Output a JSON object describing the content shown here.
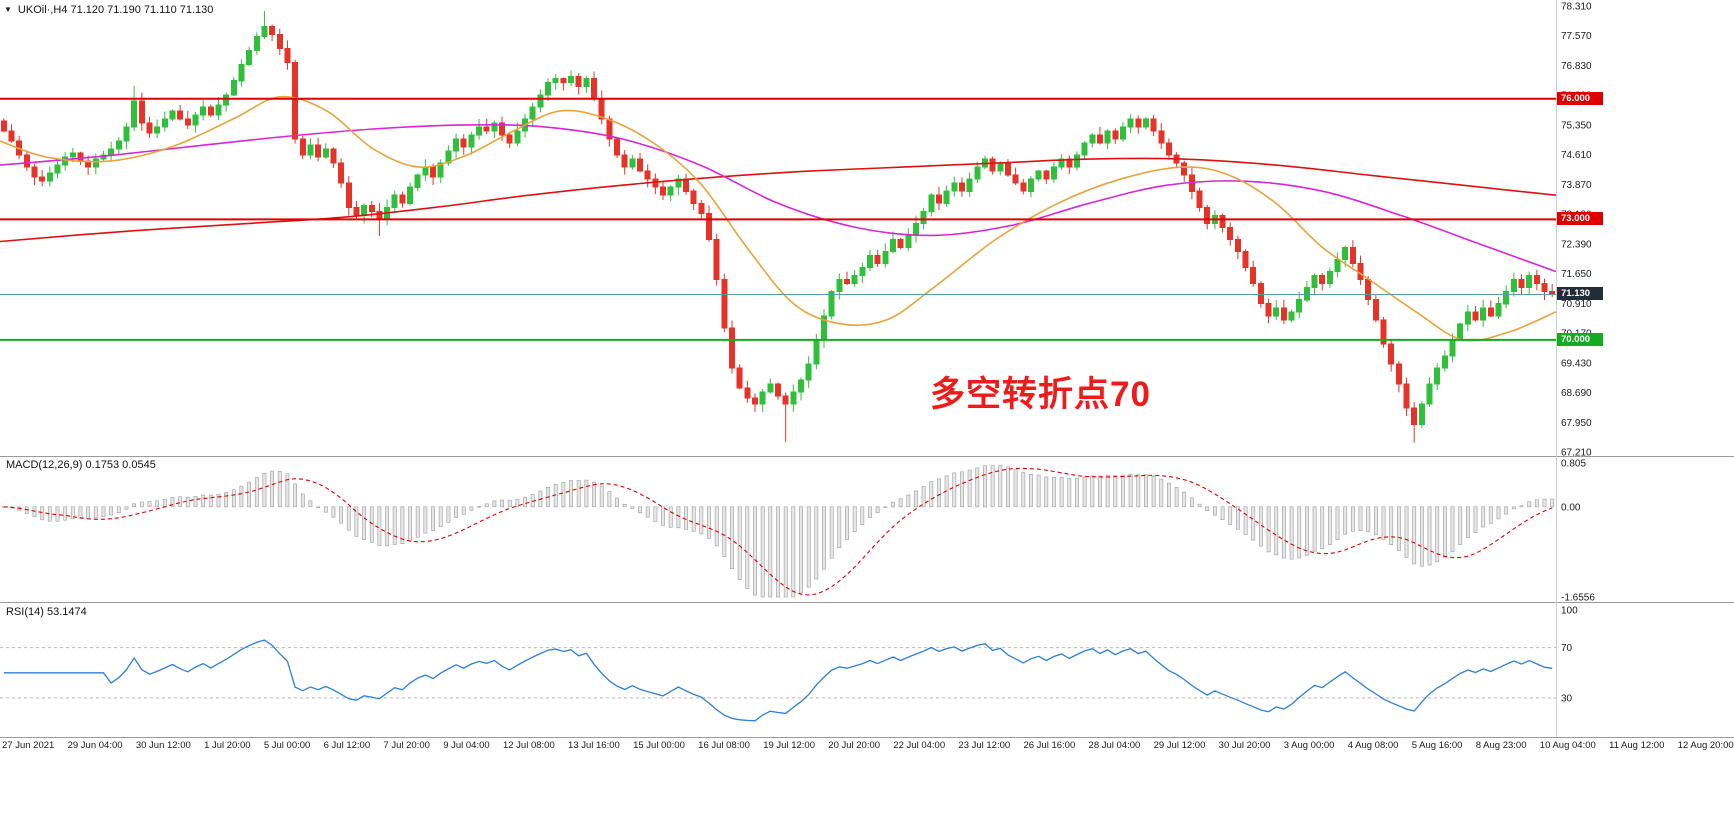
{
  "header": {
    "triangle_icon": "▼",
    "symbol_ohlc_text": "UKOil·,H4 71.120 71.190 71.110 71.130"
  },
  "annotation": {
    "text": "多空转折点70",
    "color": "#ee1b1b"
  },
  "macd_panel": {
    "label_text": "MACD(12,26,9) 0.1753 0.0545"
  },
  "rsi_panel": {
    "label_text": "RSI(14) 53.1474"
  },
  "chart_data": {
    "type": "candlestick",
    "symbol": "UKOil",
    "timeframe": "H4",
    "ohlc_display": {
      "open": "71.120",
      "high": "71.190",
      "low": "71.110",
      "close": "71.130"
    },
    "colors": {
      "up": "#2fbf3a",
      "down": "#e6332a",
      "macd_hist_fill": "#e6e6e6",
      "macd_hist_stroke": "#9c9c9c",
      "macd_signal": "#e00000",
      "rsi_line": "#2f7ed8",
      "grid_dash": "#b8b8b8",
      "separator": "#9b9b9b",
      "axis_text": "#1c1c1c"
    },
    "price_axis": {
      "min": 67.21,
      "max": 78.31,
      "ticks": [
        78.31,
        77.57,
        76.83,
        76.09,
        75.35,
        74.61,
        73.87,
        73.13,
        72.39,
        71.65,
        70.91,
        70.17,
        69.43,
        68.69,
        67.95,
        67.21
      ],
      "boxes": [
        {
          "label": "76.000",
          "price": 76.0,
          "bg": "#dd0000"
        },
        {
          "label": "73.000",
          "price": 73.0,
          "bg": "#dd0000"
        },
        {
          "label": "71.130",
          "price": 71.13,
          "bg": "#222d3a"
        },
        {
          "label": "70.000",
          "price": 70.0,
          "bg": "#12ad1f"
        }
      ]
    },
    "levels": [
      {
        "label": "76.000",
        "price": 76.0,
        "color": "#dd0000"
      },
      {
        "label": "73.000",
        "price": 73.0,
        "color": "#dd0000"
      },
      {
        "label": "70.000",
        "price": 70.0,
        "color": "#12ad1f"
      }
    ],
    "current_price": {
      "value": 71.13,
      "label": "71.130",
      "line_color": "#5b98a8"
    },
    "time_labels": [
      "27 Jun 2021",
      "29 Jun 04:00",
      "30 Jun 12:00",
      "1 Jul 20:00",
      "5 Jul 00:00",
      "6 Jul 12:00",
      "7 Jul 20:00",
      "9 Jul 04:00",
      "12 Jul 08:00",
      "13 Jul 16:00",
      "15 Jul 00:00",
      "16 Jul 08:00",
      "19 Jul 12:00",
      "20 Jul 20:00",
      "22 Jul 04:00",
      "23 Jul 12:00",
      "26 Jul 16:00",
      "28 Jul 04:00",
      "29 Jul 12:00",
      "30 Jul 20:00",
      "3 Aug 00:00",
      "4 Aug 08:00",
      "5 Aug 16:00",
      "8 Aug 23:00",
      "10 Aug 04:00",
      "11 Aug 12:00",
      "12 Aug 20:00"
    ],
    "closes": [
      75.2,
      74.95,
      74.6,
      74.3,
      74.05,
      73.95,
      74.15,
      74.35,
      74.55,
      74.65,
      74.45,
      74.3,
      74.5,
      74.6,
      74.75,
      74.95,
      75.3,
      75.95,
      75.4,
      75.15,
      75.3,
      75.5,
      75.7,
      75.5,
      75.35,
      75.6,
      75.8,
      75.6,
      75.85,
      76.1,
      76.45,
      76.85,
      77.2,
      77.55,
      77.8,
      77.6,
      77.25,
      76.9,
      75.0,
      74.6,
      74.85,
      74.55,
      74.75,
      74.4,
      73.9,
      73.3,
      73.1,
      73.35,
      73.2,
      73.0,
      73.3,
      73.6,
      73.4,
      73.8,
      74.1,
      74.3,
      74.05,
      74.4,
      74.7,
      75.0,
      74.8,
      75.1,
      75.3,
      75.2,
      75.4,
      75.1,
      74.9,
      75.2,
      75.5,
      75.8,
      76.1,
      76.4,
      76.5,
      76.4,
      76.55,
      76.3,
      76.5,
      76.0,
      75.5,
      75.0,
      74.6,
      74.3,
      74.5,
      74.2,
      74.0,
      73.8,
      73.6,
      73.8,
      74.0,
      73.7,
      73.4,
      73.15,
      72.5,
      71.5,
      70.3,
      69.3,
      68.8,
      68.55,
      68.4,
      68.7,
      68.9,
      68.6,
      68.4,
      68.7,
      69.0,
      69.4,
      70.0,
      70.6,
      71.2,
      71.5,
      71.4,
      71.6,
      71.8,
      72.1,
      71.9,
      72.2,
      72.5,
      72.3,
      72.6,
      72.9,
      73.2,
      73.6,
      73.4,
      73.7,
      73.9,
      73.7,
      74.0,
      74.3,
      74.5,
      74.2,
      74.4,
      74.1,
      73.9,
      73.7,
      74.0,
      74.2,
      74.0,
      74.3,
      74.5,
      74.3,
      74.6,
      74.9,
      75.1,
      74.9,
      75.2,
      75.0,
      75.3,
      75.5,
      75.3,
      75.5,
      75.2,
      74.9,
      74.6,
      74.4,
      74.1,
      73.7,
      73.3,
      72.9,
      73.1,
      72.8,
      72.5,
      72.2,
      71.8,
      71.4,
      70.9,
      70.6,
      70.8,
      70.5,
      70.7,
      71.0,
      71.3,
      71.6,
      71.4,
      71.7,
      72.0,
      72.3,
      71.9,
      71.5,
      71.0,
      70.5,
      69.9,
      69.4,
      68.9,
      68.3,
      67.9,
      68.4,
      68.9,
      69.3,
      69.6,
      70.0,
      70.4,
      70.7,
      70.5,
      70.8,
      70.6,
      70.9,
      71.2,
      71.5,
      71.3,
      71.6,
      71.4,
      71.2,
      71.13
    ],
    "wick_extras": {
      "17": [
        0.3,
        0
      ],
      "34": [
        0.25,
        0
      ],
      "49": [
        0,
        0.25
      ],
      "102": [
        0,
        0.85
      ],
      "184": [
        0,
        0.3
      ]
    },
    "moving_averages": [
      {
        "name": "ma-slow",
        "color": "#dd1111",
        "points": [
          [
            0,
            72.45
          ],
          [
            0.08,
            72.7
          ],
          [
            0.16,
            72.9
          ],
          [
            0.22,
            73.05
          ],
          [
            0.28,
            73.3
          ],
          [
            0.34,
            73.6
          ],
          [
            0.4,
            73.85
          ],
          [
            0.46,
            74.05
          ],
          [
            0.52,
            74.2
          ],
          [
            0.58,
            74.3
          ],
          [
            0.64,
            74.4
          ],
          [
            0.7,
            74.5
          ],
          [
            0.76,
            74.5
          ],
          [
            0.82,
            74.35
          ],
          [
            0.88,
            74.1
          ],
          [
            0.94,
            73.85
          ],
          [
            1,
            73.6
          ]
        ]
      },
      {
        "name": "ma-mid",
        "color": "#d626d6",
        "points": [
          [
            0,
            74.35
          ],
          [
            0.06,
            74.55
          ],
          [
            0.12,
            74.8
          ],
          [
            0.18,
            75.05
          ],
          [
            0.24,
            75.25
          ],
          [
            0.3,
            75.35
          ],
          [
            0.35,
            75.3
          ],
          [
            0.4,
            75.0
          ],
          [
            0.45,
            74.35
          ],
          [
            0.5,
            73.4
          ],
          [
            0.55,
            72.8
          ],
          [
            0.6,
            72.6
          ],
          [
            0.65,
            72.85
          ],
          [
            0.7,
            73.4
          ],
          [
            0.75,
            73.85
          ],
          [
            0.8,
            73.95
          ],
          [
            0.85,
            73.7
          ],
          [
            0.9,
            73.1
          ],
          [
            0.95,
            72.4
          ],
          [
            1,
            71.7
          ]
        ]
      },
      {
        "name": "ma-fast",
        "color": "#e8a33c",
        "points": [
          [
            0,
            74.95
          ],
          [
            0.03,
            74.55
          ],
          [
            0.07,
            74.45
          ],
          [
            0.11,
            74.8
          ],
          [
            0.15,
            75.5
          ],
          [
            0.18,
            76.05
          ],
          [
            0.21,
            75.7
          ],
          [
            0.24,
            74.75
          ],
          [
            0.27,
            74.3
          ],
          [
            0.3,
            74.6
          ],
          [
            0.33,
            75.2
          ],
          [
            0.36,
            75.7
          ],
          [
            0.39,
            75.5
          ],
          [
            0.42,
            74.9
          ],
          [
            0.45,
            73.9
          ],
          [
            0.48,
            72.3
          ],
          [
            0.51,
            70.9
          ],
          [
            0.54,
            70.4
          ],
          [
            0.57,
            70.5
          ],
          [
            0.6,
            71.3
          ],
          [
            0.64,
            72.5
          ],
          [
            0.68,
            73.4
          ],
          [
            0.72,
            74.0
          ],
          [
            0.76,
            74.3
          ],
          [
            0.79,
            74.1
          ],
          [
            0.82,
            73.4
          ],
          [
            0.85,
            72.3
          ],
          [
            0.88,
            71.5
          ],
          [
            0.91,
            70.7
          ],
          [
            0.94,
            70.0
          ],
          [
            0.97,
            70.2
          ],
          [
            1,
            70.7
          ]
        ]
      }
    ],
    "macd": {
      "fast": 12,
      "slow": 26,
      "signal": 9,
      "value_main": 0.1753,
      "value_signal": 0.0545,
      "axis_ticks": [
        [
          "0.805",
          0.805
        ],
        [
          "0.00",
          0
        ],
        [
          "-1.6556",
          -1.6556
        ]
      ]
    },
    "rsi": {
      "period": 14,
      "value": 53.1474,
      "levels": [
        70,
        30
      ],
      "axis_ticks": [
        [
          "100",
          100
        ],
        [
          "70",
          70
        ],
        [
          "30",
          30
        ]
      ]
    }
  }
}
